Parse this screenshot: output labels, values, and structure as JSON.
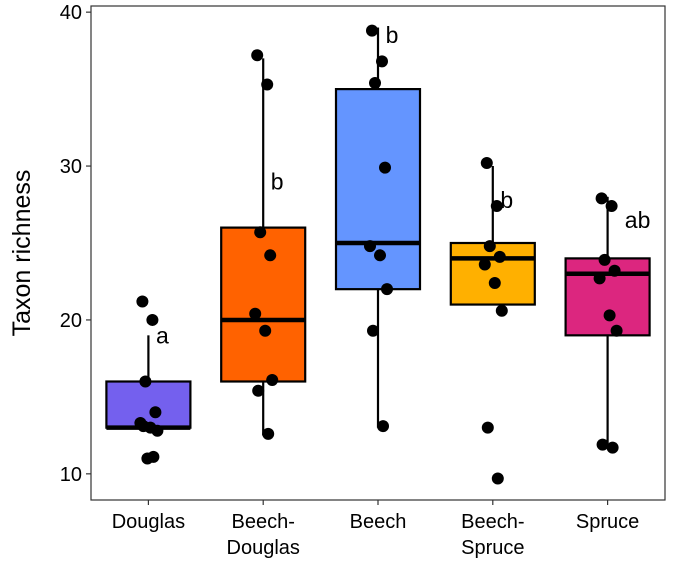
{
  "chart_data": {
    "type": "boxplot",
    "title": "",
    "xlabel": "",
    "ylabel": "Taxon richness",
    "ylim": [
      8.3,
      40.4
    ],
    "yticks": [
      10,
      20,
      30,
      40
    ],
    "ytick_labels": [
      "10",
      "20",
      "30",
      "40"
    ],
    "grid": false,
    "categories": [
      {
        "name": "Douglas",
        "label_lines": [
          "Douglas"
        ],
        "color": "#7460EE",
        "box": {
          "min": 13,
          "q1": 13,
          "median": 13,
          "q3": 16,
          "max": 19
        },
        "letter": "a",
        "points": [
          21.2,
          20.0,
          16.0,
          14.0,
          13.3,
          13.0,
          12.8,
          13.1,
          11.1,
          11.0
        ]
      },
      {
        "name": "Beech-Douglas",
        "label_lines": [
          "Beech-",
          "Douglas"
        ],
        "color": "#FF6200",
        "box": {
          "min": 12.5,
          "q1": 16,
          "median": 20,
          "q3": 26,
          "max": 37
        },
        "letter": "b",
        "points": [
          37.2,
          35.3,
          25.7,
          24.2,
          20.4,
          19.3,
          16.1,
          15.4,
          12.6
        ]
      },
      {
        "name": "Beech",
        "label_lines": [
          "Beech"
        ],
        "color": "#6495FF",
        "box": {
          "min": 13,
          "q1": 22,
          "median": 25,
          "q3": 35,
          "max": 39
        },
        "letter": "b",
        "points": [
          38.8,
          36.8,
          35.4,
          29.9,
          24.8,
          24.2,
          22.0,
          19.3,
          13.1
        ]
      },
      {
        "name": "Beech-Spruce",
        "label_lines": [
          "Beech-",
          "Spruce"
        ],
        "color": "#FFB000",
        "box": {
          "min": 21,
          "q1": 21,
          "median": 24,
          "q3": 25,
          "max": 30
        },
        "letter": "b",
        "points": [
          30.2,
          27.4,
          24.8,
          24.1,
          23.6,
          22.4,
          20.6,
          13.0,
          9.7
        ]
      },
      {
        "name": "Spruce",
        "label_lines": [
          "Spruce"
        ],
        "color": "#DC267F",
        "box": {
          "min": 12,
          "q1": 19,
          "median": 23,
          "q3": 24,
          "max": 28
        },
        "letter": "ab",
        "points": [
          27.9,
          27.4,
          23.9,
          23.2,
          22.7,
          20.3,
          19.3,
          11.9,
          11.7
        ]
      }
    ]
  }
}
